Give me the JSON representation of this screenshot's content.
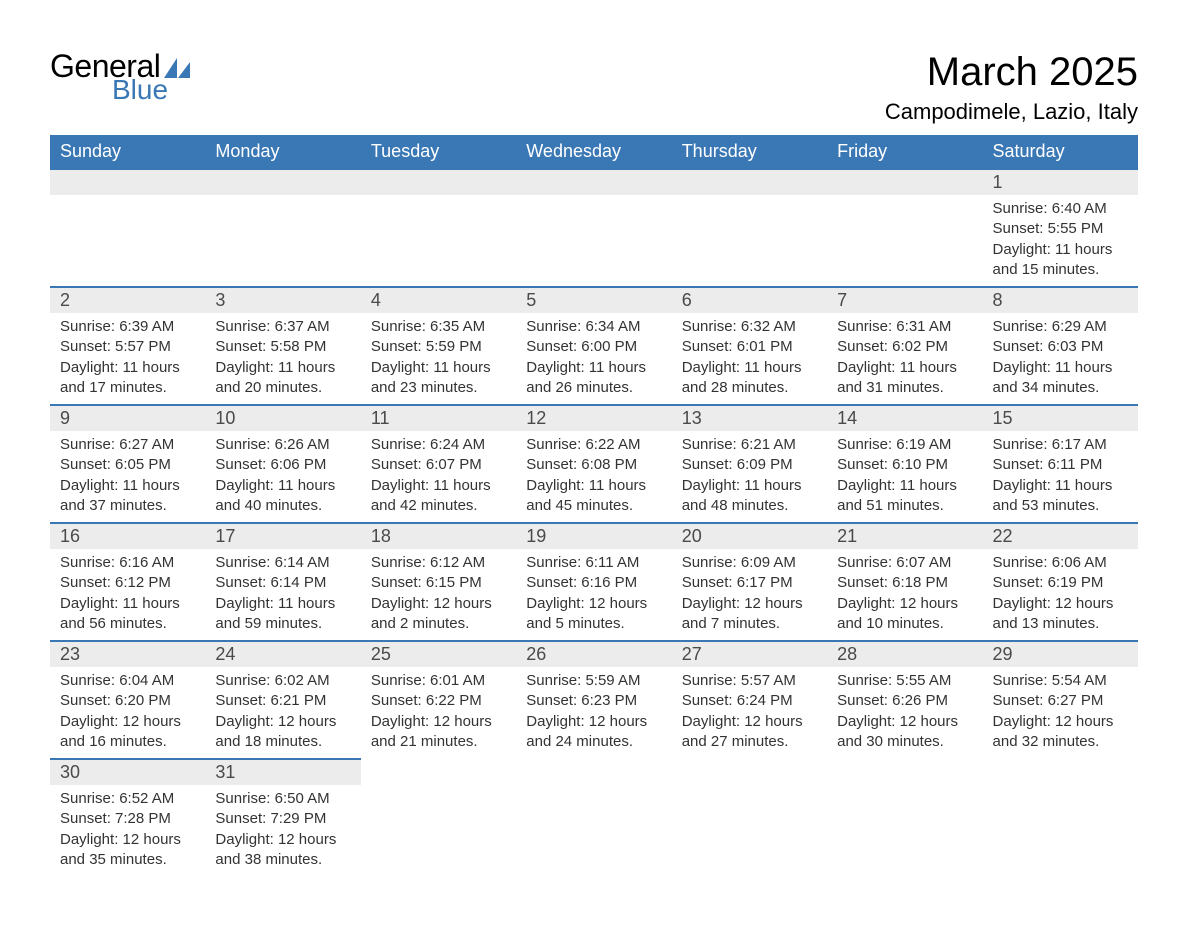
{
  "logo": {
    "text_a": "General",
    "text_b": "Blue",
    "shape_color": "#3a78b5"
  },
  "title": "March 2025",
  "location": "Campodimele, Lazio, Italy",
  "colors": {
    "header_bg": "#3a78b5",
    "header_text": "#ffffff",
    "daynum_bg": "#ececec",
    "border": "#3a78b5",
    "body_text": "#333333"
  },
  "typography": {
    "title_fontsize": 40,
    "location_fontsize": 22,
    "header_fontsize": 18,
    "daynum_fontsize": 18,
    "cell_fontsize": 15
  },
  "weekdays": [
    "Sunday",
    "Monday",
    "Tuesday",
    "Wednesday",
    "Thursday",
    "Friday",
    "Saturday"
  ],
  "weeks": [
    [
      null,
      null,
      null,
      null,
      null,
      null,
      {
        "n": "1",
        "sr": "6:40 AM",
        "ss": "5:55 PM",
        "dl": "11 hours and 15 minutes."
      }
    ],
    [
      {
        "n": "2",
        "sr": "6:39 AM",
        "ss": "5:57 PM",
        "dl": "11 hours and 17 minutes."
      },
      {
        "n": "3",
        "sr": "6:37 AM",
        "ss": "5:58 PM",
        "dl": "11 hours and 20 minutes."
      },
      {
        "n": "4",
        "sr": "6:35 AM",
        "ss": "5:59 PM",
        "dl": "11 hours and 23 minutes."
      },
      {
        "n": "5",
        "sr": "6:34 AM",
        "ss": "6:00 PM",
        "dl": "11 hours and 26 minutes."
      },
      {
        "n": "6",
        "sr": "6:32 AM",
        "ss": "6:01 PM",
        "dl": "11 hours and 28 minutes."
      },
      {
        "n": "7",
        "sr": "6:31 AM",
        "ss": "6:02 PM",
        "dl": "11 hours and 31 minutes."
      },
      {
        "n": "8",
        "sr": "6:29 AM",
        "ss": "6:03 PM",
        "dl": "11 hours and 34 minutes."
      }
    ],
    [
      {
        "n": "9",
        "sr": "6:27 AM",
        "ss": "6:05 PM",
        "dl": "11 hours and 37 minutes."
      },
      {
        "n": "10",
        "sr": "6:26 AM",
        "ss": "6:06 PM",
        "dl": "11 hours and 40 minutes."
      },
      {
        "n": "11",
        "sr": "6:24 AM",
        "ss": "6:07 PM",
        "dl": "11 hours and 42 minutes."
      },
      {
        "n": "12",
        "sr": "6:22 AM",
        "ss": "6:08 PM",
        "dl": "11 hours and 45 minutes."
      },
      {
        "n": "13",
        "sr": "6:21 AM",
        "ss": "6:09 PM",
        "dl": "11 hours and 48 minutes."
      },
      {
        "n": "14",
        "sr": "6:19 AM",
        "ss": "6:10 PM",
        "dl": "11 hours and 51 minutes."
      },
      {
        "n": "15",
        "sr": "6:17 AM",
        "ss": "6:11 PM",
        "dl": "11 hours and 53 minutes."
      }
    ],
    [
      {
        "n": "16",
        "sr": "6:16 AM",
        "ss": "6:12 PM",
        "dl": "11 hours and 56 minutes."
      },
      {
        "n": "17",
        "sr": "6:14 AM",
        "ss": "6:14 PM",
        "dl": "11 hours and 59 minutes."
      },
      {
        "n": "18",
        "sr": "6:12 AM",
        "ss": "6:15 PM",
        "dl": "12 hours and 2 minutes."
      },
      {
        "n": "19",
        "sr": "6:11 AM",
        "ss": "6:16 PM",
        "dl": "12 hours and 5 minutes."
      },
      {
        "n": "20",
        "sr": "6:09 AM",
        "ss": "6:17 PM",
        "dl": "12 hours and 7 minutes."
      },
      {
        "n": "21",
        "sr": "6:07 AM",
        "ss": "6:18 PM",
        "dl": "12 hours and 10 minutes."
      },
      {
        "n": "22",
        "sr": "6:06 AM",
        "ss": "6:19 PM",
        "dl": "12 hours and 13 minutes."
      }
    ],
    [
      {
        "n": "23",
        "sr": "6:04 AM",
        "ss": "6:20 PM",
        "dl": "12 hours and 16 minutes."
      },
      {
        "n": "24",
        "sr": "6:02 AM",
        "ss": "6:21 PM",
        "dl": "12 hours and 18 minutes."
      },
      {
        "n": "25",
        "sr": "6:01 AM",
        "ss": "6:22 PM",
        "dl": "12 hours and 21 minutes."
      },
      {
        "n": "26",
        "sr": "5:59 AM",
        "ss": "6:23 PM",
        "dl": "12 hours and 24 minutes."
      },
      {
        "n": "27",
        "sr": "5:57 AM",
        "ss": "6:24 PM",
        "dl": "12 hours and 27 minutes."
      },
      {
        "n": "28",
        "sr": "5:55 AM",
        "ss": "6:26 PM",
        "dl": "12 hours and 30 minutes."
      },
      {
        "n": "29",
        "sr": "5:54 AM",
        "ss": "6:27 PM",
        "dl": "12 hours and 32 minutes."
      }
    ],
    [
      {
        "n": "30",
        "sr": "6:52 AM",
        "ss": "7:28 PM",
        "dl": "12 hours and 35 minutes."
      },
      {
        "n": "31",
        "sr": "6:50 AM",
        "ss": "7:29 PM",
        "dl": "12 hours and 38 minutes."
      },
      null,
      null,
      null,
      null,
      null
    ]
  ],
  "labels": {
    "sunrise": "Sunrise: ",
    "sunset": "Sunset: ",
    "daylight": "Daylight: "
  }
}
